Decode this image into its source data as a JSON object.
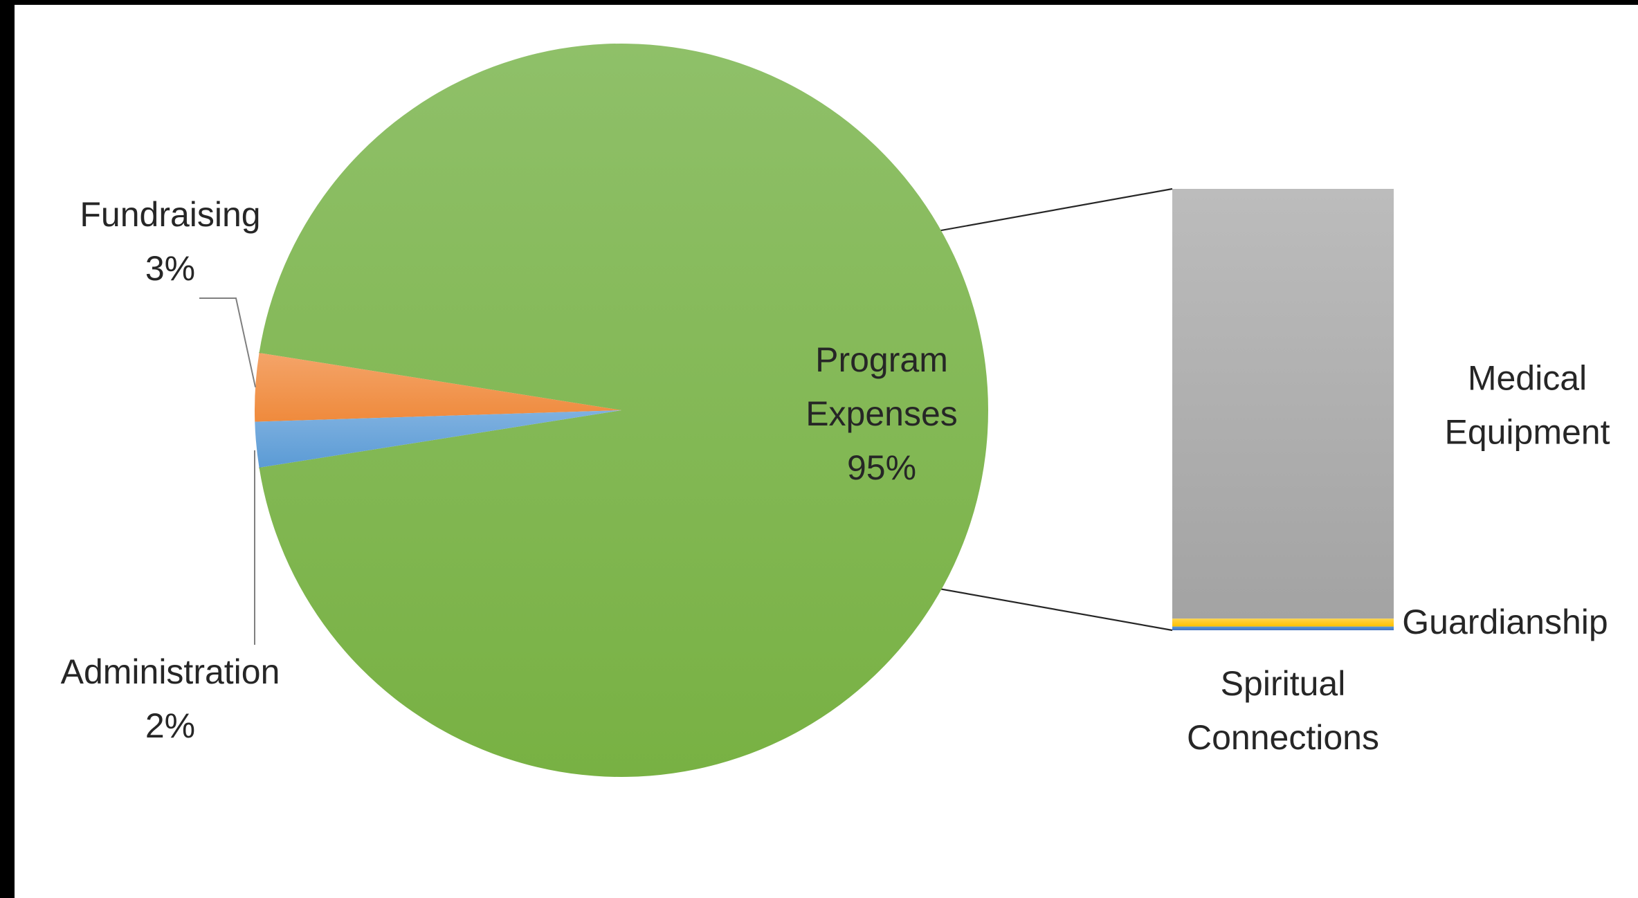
{
  "chart_data": {
    "type": "pie",
    "subtype": "bar-of-pie",
    "slices": [
      {
        "label": "Program Expenses",
        "percent_label": "95%",
        "value": 95,
        "color": "#78b143",
        "color_light": "#8fc069"
      },
      {
        "label": "Fundraising",
        "percent_label": "3%",
        "value": 3,
        "color": "#ef8a3c",
        "color_light": "#f4a469"
      },
      {
        "label": "Administration",
        "percent_label": "2%",
        "value": 2,
        "color": "#5b9bd5",
        "color_light": "#7fb1e0"
      }
    ],
    "breakdown_of": "Program Expenses",
    "breakdown": [
      {
        "label": "Medical Equipment",
        "value": 92.5,
        "color": "#a3a3a3",
        "color_light": "#bcbcbc"
      },
      {
        "label": "Guardianship",
        "value": 1.7,
        "color": "#ffc000",
        "color_light": "#ffd54a"
      },
      {
        "label": "Spiritual Connections",
        "value": 0.8,
        "color": "#4472c4",
        "color_light": "#5b9bd5"
      }
    ],
    "legend": "none"
  }
}
